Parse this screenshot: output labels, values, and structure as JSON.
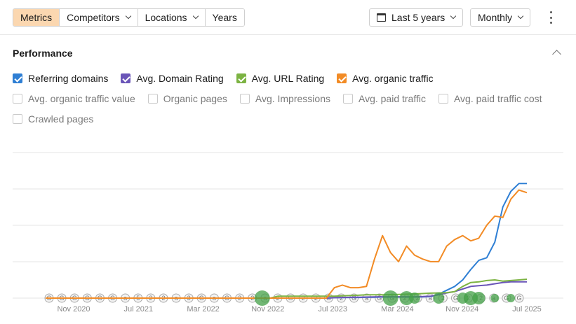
{
  "toolbar": {
    "tabs": [
      {
        "label": "Metrics",
        "active": true,
        "dropdown": false
      },
      {
        "label": "Competitors",
        "active": false,
        "dropdown": true
      },
      {
        "label": "Locations",
        "active": false,
        "dropdown": true
      },
      {
        "label": "Years",
        "active": false,
        "dropdown": false
      }
    ],
    "range_label": "Last 5 years",
    "interval_label": "Monthly"
  },
  "section": {
    "title": "Performance"
  },
  "legend": {
    "row1": [
      {
        "label": "Referring domains",
        "checked": true,
        "color": "#2f7fd4"
      },
      {
        "label": "Avg. Domain Rating",
        "checked": true,
        "color": "#6a55b8"
      },
      {
        "label": "Avg. URL Rating",
        "checked": true,
        "color": "#7cb342"
      },
      {
        "label": "Avg. organic traffic",
        "checked": true,
        "color": "#f28b25"
      }
    ],
    "row2": [
      {
        "label": "Avg. organic traffic value",
        "checked": false
      },
      {
        "label": "Organic pages",
        "checked": false
      },
      {
        "label": "Avg. Impressions",
        "checked": false
      },
      {
        "label": "Avg. paid traffic",
        "checked": false
      },
      {
        "label": "Avg. paid traffic cost",
        "checked": false
      }
    ],
    "row3": [
      {
        "label": "Crawled pages",
        "checked": false
      }
    ]
  },
  "chart_data": {
    "type": "line",
    "x_ticks": [
      "Nov 2020",
      "Jul 2021",
      "Mar 2022",
      "Nov 2022",
      "Jul 2023",
      "Mar 2024",
      "Nov 2024",
      "Jul 2025"
    ],
    "y_scale": "normalized per series, no y-axis labels shown",
    "grid": true,
    "x": [
      "2020-08",
      "2020-09",
      "2020-10",
      "2020-11",
      "2020-12",
      "2021-01",
      "2021-02",
      "2021-03",
      "2021-04",
      "2021-05",
      "2021-06",
      "2021-07",
      "2021-08",
      "2021-09",
      "2021-10",
      "2021-11",
      "2021-12",
      "2022-01",
      "2022-02",
      "2022-03",
      "2022-04",
      "2022-05",
      "2022-06",
      "2022-07",
      "2022-08",
      "2022-09",
      "2022-10",
      "2022-11",
      "2022-12",
      "2023-01",
      "2023-02",
      "2023-03",
      "2023-04",
      "2023-05",
      "2023-06",
      "2023-07",
      "2023-08",
      "2023-09",
      "2023-10",
      "2023-11",
      "2023-12",
      "2024-01",
      "2024-02",
      "2024-03",
      "2024-04",
      "2024-05",
      "2024-06",
      "2024-07",
      "2024-08",
      "2024-09",
      "2024-10",
      "2024-11",
      "2024-12",
      "2025-01",
      "2025-02",
      "2025-03",
      "2025-04",
      "2025-05",
      "2025-06",
      "2025-07",
      "2025-08"
    ],
    "series": [
      {
        "name": "Referring domains",
        "color": "#2f7fd4",
        "values": [
          0,
          0,
          0,
          0,
          0,
          0,
          0,
          0,
          0,
          0,
          0,
          0,
          0,
          0,
          0,
          0,
          0,
          0,
          0,
          0,
          0,
          0,
          0,
          0,
          0,
          0,
          0,
          0,
          0,
          0,
          0,
          0,
          0,
          0,
          0,
          0,
          0.3,
          0.4,
          0.5,
          0.5,
          0.6,
          0.7,
          0.8,
          0.8,
          0.8,
          0.8,
          0.8,
          0.9,
          1.2,
          3,
          6,
          9,
          14,
          22,
          29,
          31,
          43,
          70,
          82,
          88,
          88
        ]
      },
      {
        "name": "Avg. Domain Rating",
        "color": "#6a55b8",
        "values": [
          0,
          0,
          0,
          0,
          0,
          0,
          0,
          0,
          0,
          0,
          0,
          0,
          0,
          0,
          0,
          0,
          0,
          0,
          0,
          0,
          0,
          0,
          0,
          0,
          0,
          0,
          0,
          0,
          0,
          0,
          0,
          0,
          0,
          0,
          0,
          0,
          0.3,
          0.5,
          0.6,
          0.7,
          0.8,
          0.9,
          1,
          1,
          1,
          1,
          1,
          1.2,
          1.5,
          2.5,
          4,
          5,
          7,
          9,
          9.5,
          10,
          11,
          12,
          12.5,
          12.5,
          12.5
        ]
      },
      {
        "name": "Avg. URL Rating",
        "color": "#7cb342",
        "values": [
          0,
          0,
          0,
          0,
          0,
          0,
          0,
          0,
          0,
          0,
          0,
          0,
          0,
          0,
          0,
          0,
          0,
          0,
          0,
          0,
          0,
          0,
          0,
          0,
          0,
          0,
          0,
          0,
          0,
          1.5,
          1.5,
          1.5,
          1.5,
          1.5,
          1.5,
          1.5,
          1.5,
          1.8,
          2,
          2.2,
          2.5,
          2.5,
          2.6,
          2.7,
          2.8,
          3,
          3.2,
          3.5,
          3.8,
          4,
          4.2,
          5,
          9,
          12,
          12.5,
          13.5,
          14,
          13,
          13.5,
          14,
          14.5
        ]
      },
      {
        "name": "Avg. organic traffic",
        "color": "#f28b25",
        "values": [
          0,
          0,
          0,
          0,
          0,
          0,
          0,
          0,
          0,
          0,
          0,
          0,
          0,
          0,
          0,
          0,
          0,
          0,
          0,
          0,
          0,
          0,
          0,
          0,
          0,
          0,
          0,
          0,
          0,
          0,
          0,
          0,
          0,
          0,
          0,
          0,
          8,
          10,
          8,
          8,
          9,
          30,
          48,
          35,
          28,
          40,
          33,
          30,
          28,
          28,
          40,
          45,
          48,
          44,
          46,
          56,
          63,
          62,
          76,
          83,
          81
        ]
      }
    ],
    "event_markers": [
      "G",
      "G",
      "G",
      "G",
      "G",
      "G",
      "a",
      "5",
      "2",
      "2",
      "a",
      "3",
      "G",
      "a",
      "G",
      "2",
      "2",
      "a",
      "2",
      "G",
      "2",
      "2",
      "G",
      "2",
      "G",
      "a",
      "G",
      "G",
      "2",
      "2",
      "a",
      "2",
      "G",
      "2",
      "2",
      "a",
      "G",
      "G"
    ]
  }
}
